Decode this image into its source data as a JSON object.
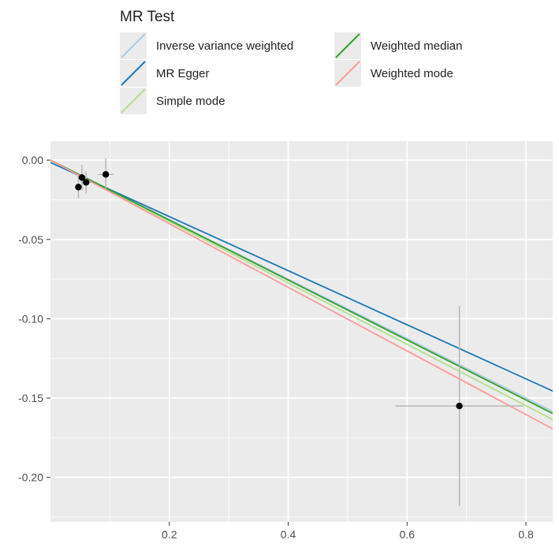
{
  "chart_data": {
    "type": "scatter",
    "title": "",
    "xlabel": "",
    "ylabel": "",
    "legend_title": "MR Test",
    "legend_position": "top",
    "grid": true,
    "xlim": [
      0.0,
      0.845
    ],
    "ylim": [
      -0.228,
      0.012
    ],
    "x_ticks": [
      0.2,
      0.4,
      0.6,
      0.8
    ],
    "x_tick_labels": [
      "0.2",
      "0.4",
      "0.6",
      "0.8"
    ],
    "y_ticks": [
      0.0,
      -0.05,
      -0.1,
      -0.15,
      -0.2
    ],
    "y_tick_labels": [
      "0.00",
      "-0.05",
      "-0.10",
      "-0.15",
      "-0.20"
    ],
    "points": [
      {
        "x": 0.047,
        "y": -0.017,
        "xerr": 0.003,
        "yerr": 0.007
      },
      {
        "x": 0.053,
        "y": -0.011,
        "xerr": 0.007,
        "yerr": 0.008
      },
      {
        "x": 0.06,
        "y": -0.014,
        "xerr": 0.009,
        "yerr": 0.007
      },
      {
        "x": 0.093,
        "y": -0.009,
        "xerr": 0.013,
        "yerr": 0.01
      },
      {
        "x": 0.688,
        "y": -0.155,
        "xerr": 0.108,
        "yerr": 0.063
      }
    ],
    "series": [
      {
        "name": "Inverse variance weighted",
        "slope": -0.1875,
        "color": "#a6cee3"
      },
      {
        "name": "MR Egger",
        "intercept": -0.0015,
        "slope": -0.1705,
        "color": "#1f78b4"
      },
      {
        "name": "Simple mode",
        "slope": -0.1935,
        "color": "#b2df8a"
      },
      {
        "name": "Weighted median",
        "slope": -0.189,
        "color": "#33a02c"
      },
      {
        "name": "Weighted mode",
        "slope": -0.2005,
        "color": "#fb9a99"
      }
    ]
  }
}
